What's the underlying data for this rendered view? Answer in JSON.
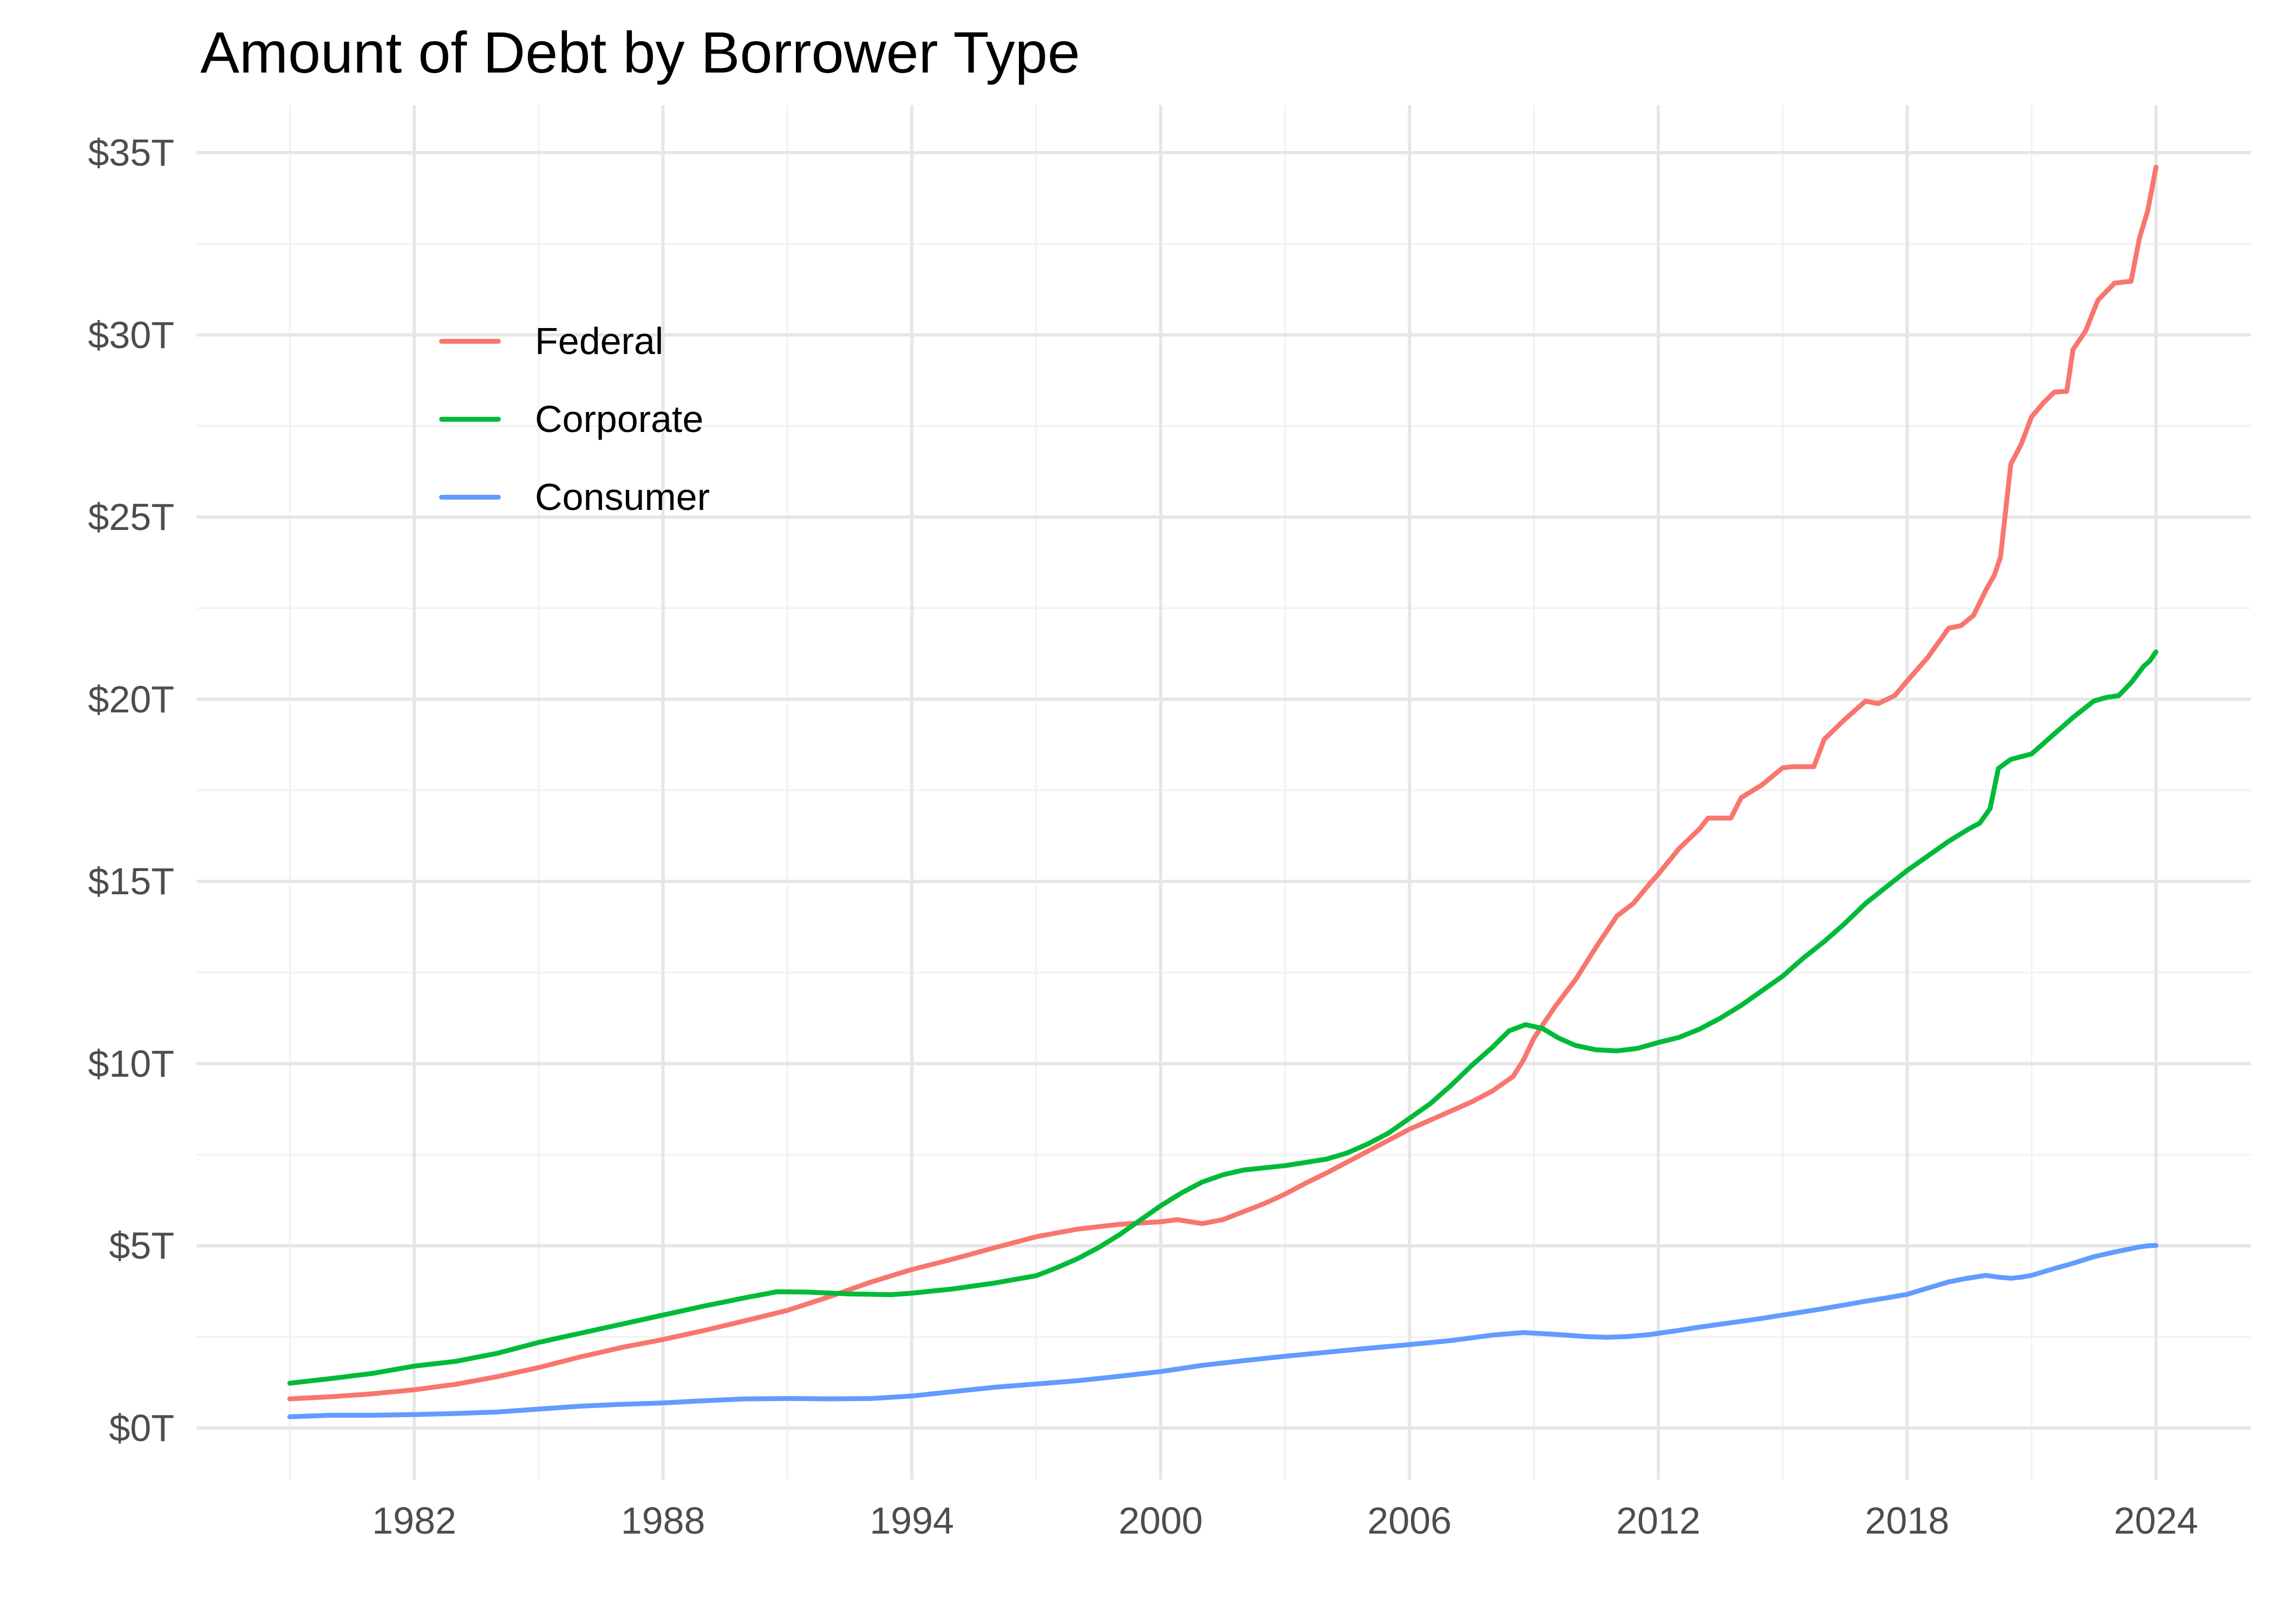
{
  "title": "Amount of Debt by Borrower Type",
  "colors": {
    "federal": "#F8766D",
    "corporate": "#00BA38",
    "consumer": "#619CFF",
    "grid_major": "#E6E6E6",
    "grid_minor": "#F2F2F2",
    "axis_text": "#4D4D4D",
    "title_text": "#000000",
    "background": "#FFFFFF"
  },
  "chart_data": {
    "type": "line",
    "title": "Amount of Debt by Borrower Type",
    "xlabel": "",
    "ylabel": "",
    "units": "trillions of US dollars",
    "grid": true,
    "legend_position": "inside-top-left",
    "xlim": [
      1976.7,
      2026.3
    ],
    "ylim": [
      -1.4,
      36.3
    ],
    "x_ticks": {
      "years": [
        1982,
        1988,
        1994,
        2000,
        2006,
        2012,
        2018,
        2024
      ],
      "labels": [
        "1982",
        "1988",
        "1994",
        "2000",
        "2006",
        "2012",
        "2018",
        "2024"
      ]
    },
    "x_minor_years": [
      1979,
      1985,
      1991,
      1997,
      2003,
      2009,
      2015,
      2021
    ],
    "y_ticks": {
      "values": [
        0,
        5,
        10,
        15,
        20,
        25,
        30,
        35
      ],
      "labels": [
        "$0T",
        "$5T",
        "$10T",
        "$15T",
        "$20T",
        "$25T",
        "$30T",
        "$35T"
      ]
    },
    "y_minor_values": [
      2.5,
      7.5,
      12.5,
      17.5,
      22.5,
      27.5,
      32.5
    ],
    "series": [
      {
        "name": "Federal",
        "color": "#F8766D",
        "points": [
          [
            1979,
            0.8
          ],
          [
            1980,
            0.86
          ],
          [
            1981,
            0.94
          ],
          [
            1982,
            1.05
          ],
          [
            1983,
            1.2
          ],
          [
            1984,
            1.41
          ],
          [
            1985,
            1.66
          ],
          [
            1986,
            1.95
          ],
          [
            1987,
            2.21
          ],
          [
            1988,
            2.43
          ],
          [
            1989,
            2.68
          ],
          [
            1990,
            2.95
          ],
          [
            1991,
            3.23
          ],
          [
            1992,
            3.6
          ],
          [
            1993,
            4.0
          ],
          [
            1994,
            4.35
          ],
          [
            1995,
            4.64
          ],
          [
            1996,
            4.95
          ],
          [
            1997,
            5.25
          ],
          [
            1998,
            5.46
          ],
          [
            1999,
            5.59
          ],
          [
            2000,
            5.66
          ],
          [
            2000.4,
            5.72
          ],
          [
            2001,
            5.61
          ],
          [
            2001.5,
            5.72
          ],
          [
            2002,
            5.94
          ],
          [
            2002.5,
            6.16
          ],
          [
            2003,
            6.42
          ],
          [
            2003.5,
            6.72
          ],
          [
            2004,
            7.0
          ],
          [
            2004.5,
            7.3
          ],
          [
            2005,
            7.6
          ],
          [
            2005.5,
            7.9
          ],
          [
            2006,
            8.2
          ],
          [
            2006.5,
            8.45
          ],
          [
            2007,
            8.7
          ],
          [
            2007.5,
            8.95
          ],
          [
            2008,
            9.25
          ],
          [
            2008.5,
            9.65
          ],
          [
            2008.75,
            10.1
          ],
          [
            2009,
            10.7
          ],
          [
            2009.5,
            11.55
          ],
          [
            2010,
            12.3
          ],
          [
            2010.5,
            13.2
          ],
          [
            2011,
            14.05
          ],
          [
            2011.4,
            14.4
          ],
          [
            2011.8,
            14.95
          ],
          [
            2012,
            15.2
          ],
          [
            2012.5,
            15.9
          ],
          [
            2013,
            16.45
          ],
          [
            2013.2,
            16.74
          ],
          [
            2013.75,
            16.74
          ],
          [
            2014,
            17.3
          ],
          [
            2014.5,
            17.65
          ],
          [
            2015,
            18.12
          ],
          [
            2015.25,
            18.15
          ],
          [
            2015.75,
            18.15
          ],
          [
            2016,
            18.9
          ],
          [
            2016.5,
            19.45
          ],
          [
            2017,
            19.95
          ],
          [
            2017.3,
            19.88
          ],
          [
            2017.7,
            20.1
          ],
          [
            2018,
            20.5
          ],
          [
            2018.5,
            21.15
          ],
          [
            2019,
            21.95
          ],
          [
            2019.3,
            22.02
          ],
          [
            2019.6,
            22.3
          ],
          [
            2019.9,
            23.0
          ],
          [
            2020.1,
            23.4
          ],
          [
            2020.25,
            23.9
          ],
          [
            2020.5,
            26.45
          ],
          [
            2020.75,
            27.0
          ],
          [
            2021,
            27.75
          ],
          [
            2021.3,
            28.15
          ],
          [
            2021.55,
            28.43
          ],
          [
            2021.85,
            28.45
          ],
          [
            2022,
            29.6
          ],
          [
            2022.3,
            30.1
          ],
          [
            2022.6,
            30.95
          ],
          [
            2023,
            31.42
          ],
          [
            2023.4,
            31.47
          ],
          [
            2023.6,
            32.65
          ],
          [
            2023.8,
            33.4
          ],
          [
            2024,
            34.6
          ]
        ]
      },
      {
        "name": "Corporate",
        "color": "#00BA38",
        "points": [
          [
            1979,
            1.23
          ],
          [
            1980,
            1.36
          ],
          [
            1981,
            1.5
          ],
          [
            1982,
            1.7
          ],
          [
            1983,
            1.83
          ],
          [
            1984,
            2.05
          ],
          [
            1985,
            2.35
          ],
          [
            1986,
            2.6
          ],
          [
            1987,
            2.85
          ],
          [
            1988,
            3.1
          ],
          [
            1989,
            3.35
          ],
          [
            1990,
            3.58
          ],
          [
            1990.75,
            3.74
          ],
          [
            1991.5,
            3.73
          ],
          [
            1992.5,
            3.68
          ],
          [
            1993.5,
            3.66
          ],
          [
            1994,
            3.7
          ],
          [
            1995,
            3.82
          ],
          [
            1996,
            3.98
          ],
          [
            1997,
            4.18
          ],
          [
            1997.5,
            4.4
          ],
          [
            1998,
            4.65
          ],
          [
            1998.5,
            4.95
          ],
          [
            1999,
            5.3
          ],
          [
            1999.5,
            5.7
          ],
          [
            2000,
            6.1
          ],
          [
            2000.5,
            6.45
          ],
          [
            2001,
            6.75
          ],
          [
            2001.5,
            6.95
          ],
          [
            2002,
            7.08
          ],
          [
            2003,
            7.2
          ],
          [
            2004,
            7.38
          ],
          [
            2004.5,
            7.55
          ],
          [
            2005,
            7.8
          ],
          [
            2005.5,
            8.1
          ],
          [
            2006,
            8.5
          ],
          [
            2006.5,
            8.9
          ],
          [
            2007,
            9.4
          ],
          [
            2007.5,
            9.95
          ],
          [
            2008,
            10.45
          ],
          [
            2008.4,
            10.9
          ],
          [
            2008.8,
            11.07
          ],
          [
            2009.2,
            10.97
          ],
          [
            2009.6,
            10.7
          ],
          [
            2010,
            10.5
          ],
          [
            2010.5,
            10.38
          ],
          [
            2011,
            10.35
          ],
          [
            2011.5,
            10.42
          ],
          [
            2012,
            10.58
          ],
          [
            2012.5,
            10.72
          ],
          [
            2013,
            10.95
          ],
          [
            2013.5,
            11.25
          ],
          [
            2014,
            11.6
          ],
          [
            2014.5,
            12.0
          ],
          [
            2015,
            12.4
          ],
          [
            2015.5,
            12.9
          ],
          [
            2016,
            13.35
          ],
          [
            2016.5,
            13.85
          ],
          [
            2017,
            14.4
          ],
          [
            2017.5,
            14.85
          ],
          [
            2018,
            15.3
          ],
          [
            2018.5,
            15.7
          ],
          [
            2019,
            16.1
          ],
          [
            2019.5,
            16.45
          ],
          [
            2019.75,
            16.6
          ],
          [
            2020,
            17.0
          ],
          [
            2020.2,
            18.1
          ],
          [
            2020.5,
            18.35
          ],
          [
            2021,
            18.5
          ],
          [
            2021.5,
            19.0
          ],
          [
            2022,
            19.5
          ],
          [
            2022.5,
            19.95
          ],
          [
            2022.8,
            20.05
          ],
          [
            2023.1,
            20.1
          ],
          [
            2023.4,
            20.45
          ],
          [
            2023.7,
            20.9
          ],
          [
            2023.85,
            21.05
          ],
          [
            2024,
            21.3
          ]
        ]
      },
      {
        "name": "Consumer",
        "color": "#619CFF",
        "points": [
          [
            1979,
            0.31
          ],
          [
            1980,
            0.35
          ],
          [
            1981,
            0.35
          ],
          [
            1982,
            0.37
          ],
          [
            1983,
            0.4
          ],
          [
            1984,
            0.44
          ],
          [
            1985,
            0.52
          ],
          [
            1986,
            0.6
          ],
          [
            1987,
            0.65
          ],
          [
            1988,
            0.69
          ],
          [
            1989,
            0.75
          ],
          [
            1990,
            0.8
          ],
          [
            1991,
            0.81
          ],
          [
            1992,
            0.8
          ],
          [
            1993,
            0.81
          ],
          [
            1994,
            0.88
          ],
          [
            1995,
            1.0
          ],
          [
            1996,
            1.12
          ],
          [
            1997,
            1.21
          ],
          [
            1998,
            1.3
          ],
          [
            1999,
            1.42
          ],
          [
            2000,
            1.55
          ],
          [
            2001,
            1.72
          ],
          [
            2002,
            1.85
          ],
          [
            2003,
            1.97
          ],
          [
            2004,
            2.08
          ],
          [
            2005,
            2.19
          ],
          [
            2006,
            2.29
          ],
          [
            2007,
            2.4
          ],
          [
            2008,
            2.55
          ],
          [
            2008.75,
            2.62
          ],
          [
            2009.25,
            2.59
          ],
          [
            2009.75,
            2.55
          ],
          [
            2010.25,
            2.51
          ],
          [
            2010.75,
            2.49
          ],
          [
            2011.25,
            2.51
          ],
          [
            2011.75,
            2.56
          ],
          [
            2012,
            2.6
          ],
          [
            2012.5,
            2.68
          ],
          [
            2013,
            2.77
          ],
          [
            2013.5,
            2.85
          ],
          [
            2014,
            2.93
          ],
          [
            2014.5,
            3.01
          ],
          [
            2015,
            3.1
          ],
          [
            2015.5,
            3.19
          ],
          [
            2016,
            3.28
          ],
          [
            2016.5,
            3.38
          ],
          [
            2017,
            3.48
          ],
          [
            2017.5,
            3.57
          ],
          [
            2018,
            3.67
          ],
          [
            2018.5,
            3.84
          ],
          [
            2019,
            4.01
          ],
          [
            2019.4,
            4.1
          ],
          [
            2019.9,
            4.19
          ],
          [
            2020.2,
            4.14
          ],
          [
            2020.5,
            4.11
          ],
          [
            2020.75,
            4.14
          ],
          [
            2021,
            4.19
          ],
          [
            2021.5,
            4.36
          ],
          [
            2022,
            4.52
          ],
          [
            2022.5,
            4.7
          ],
          [
            2023,
            4.83
          ],
          [
            2023.3,
            4.9
          ],
          [
            2023.6,
            4.97
          ],
          [
            2023.8,
            5.0
          ],
          [
            2024,
            5.01
          ]
        ]
      }
    ]
  }
}
